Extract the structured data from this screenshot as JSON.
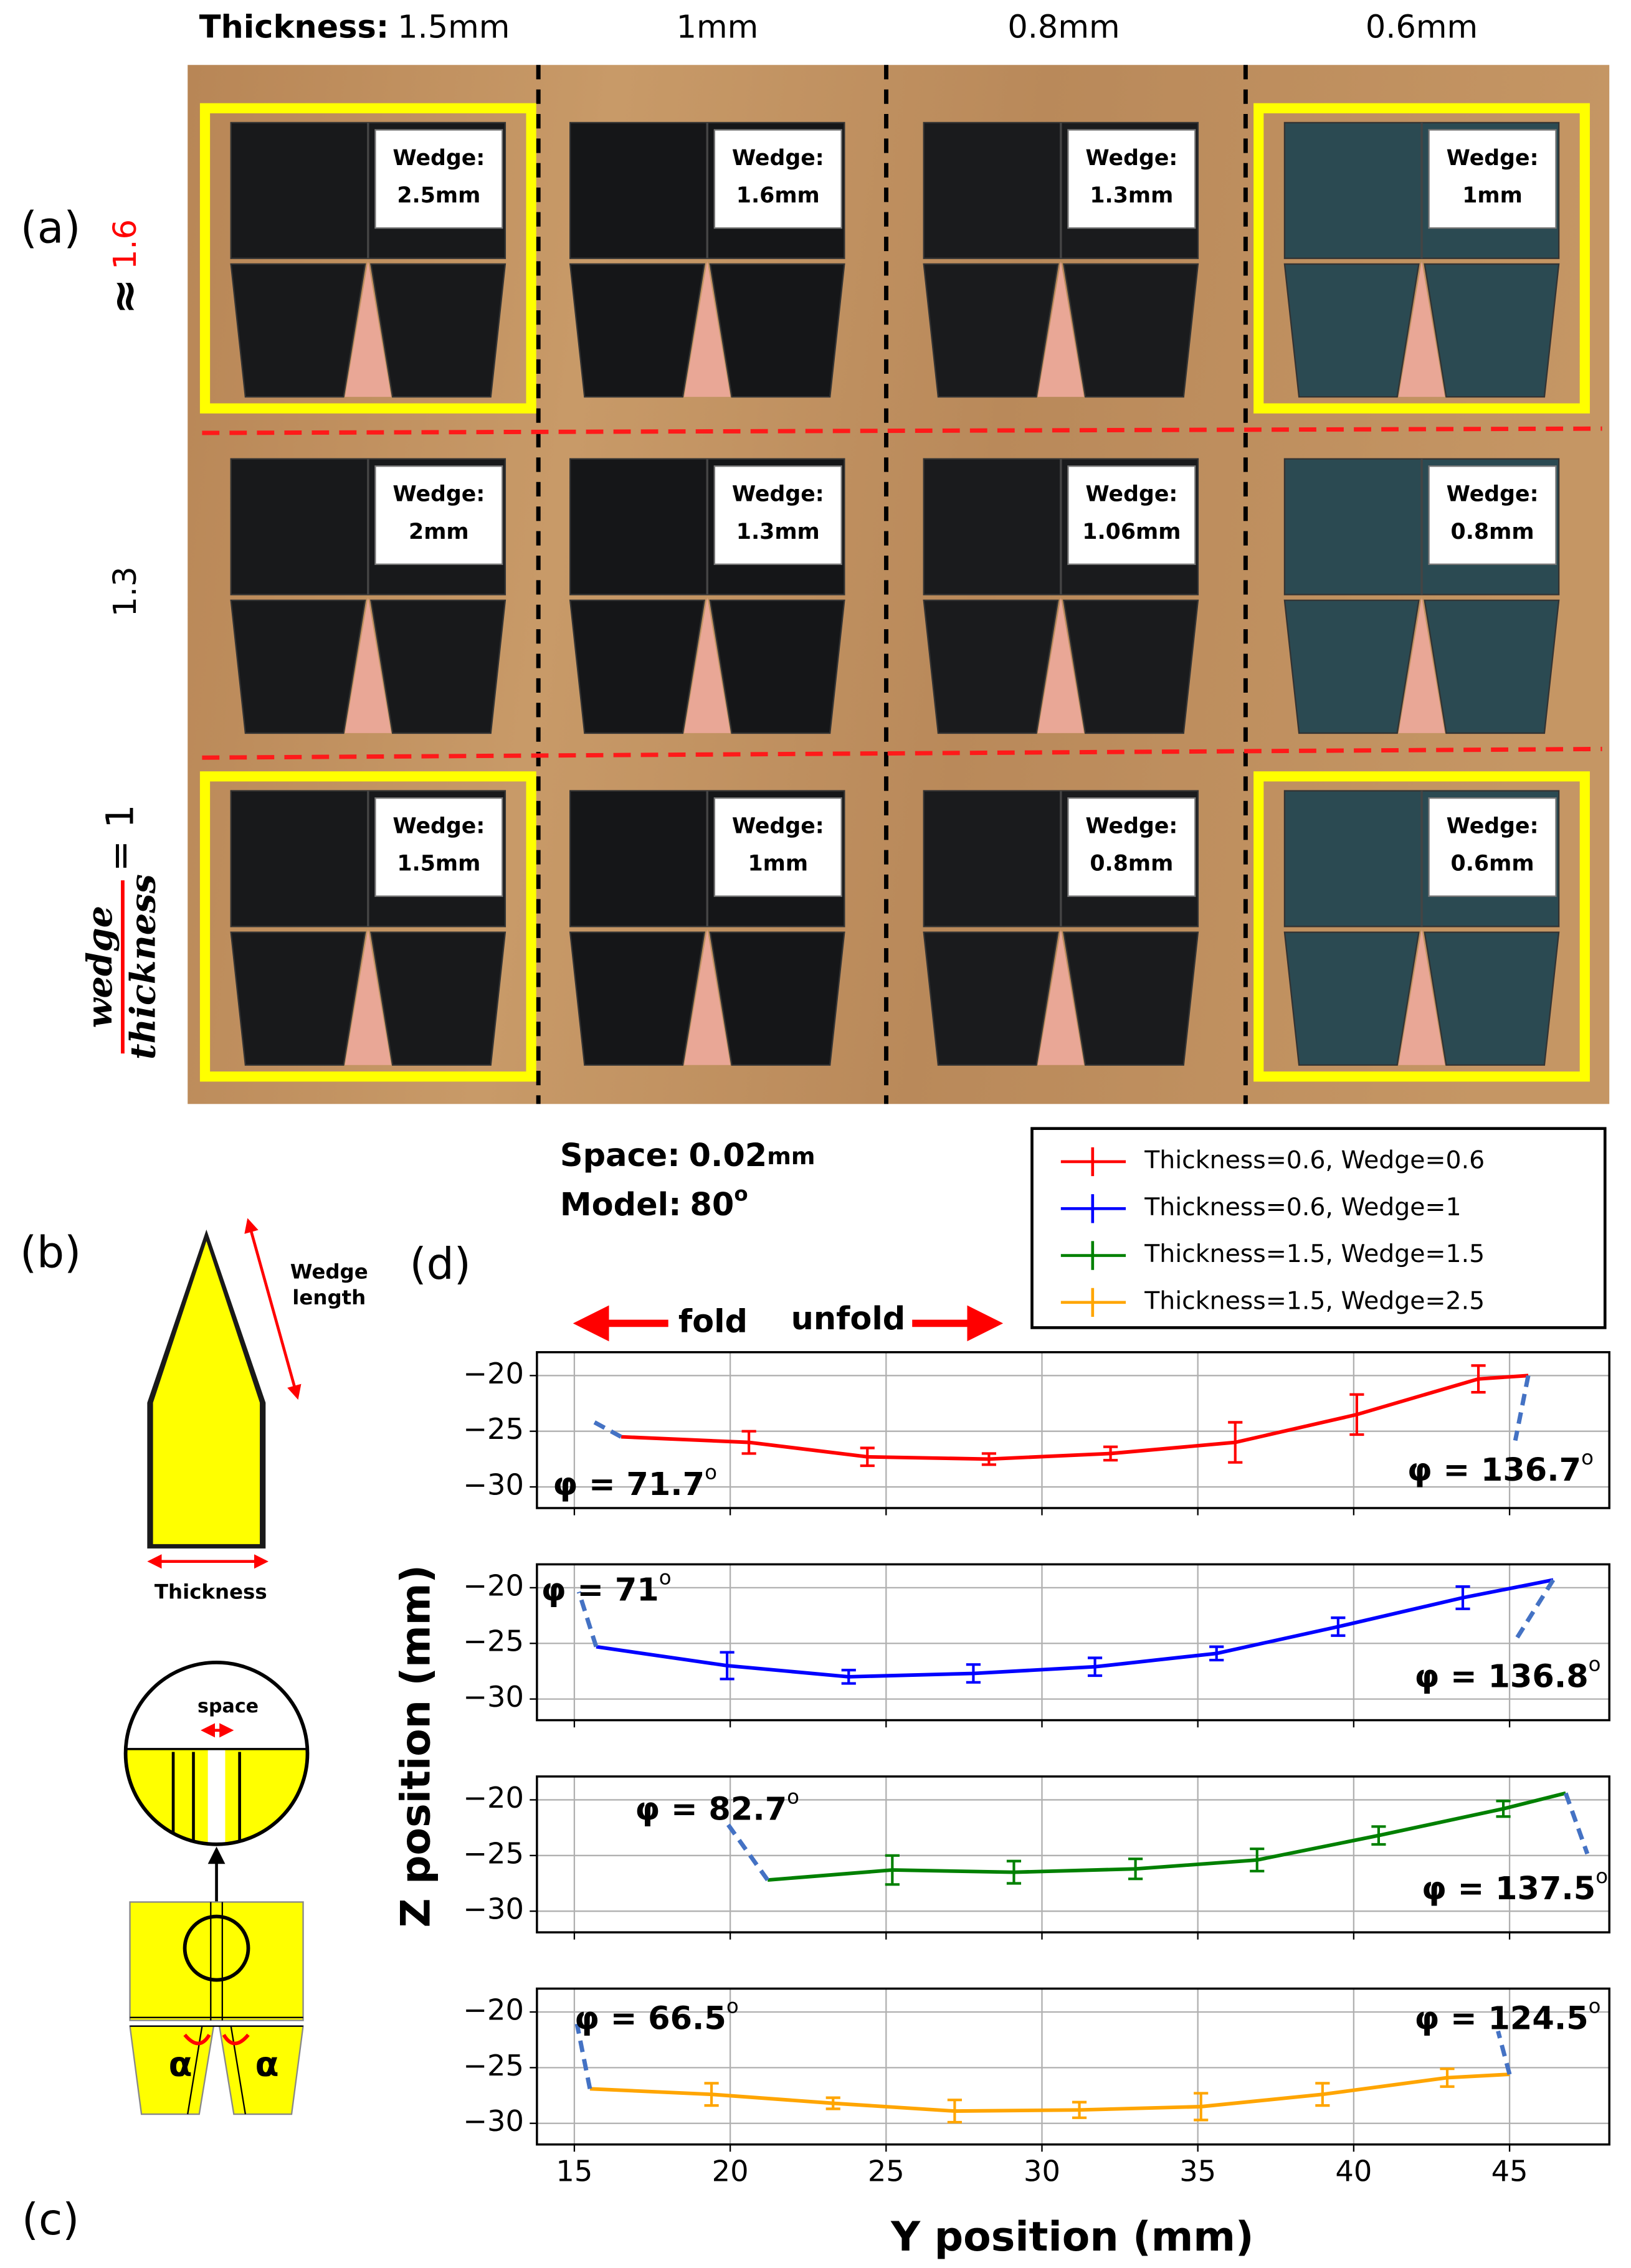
{
  "panel_labels": [
    "(a)",
    "(b)",
    "(c)",
    "(d)"
  ],
  "photo": {
    "header_prefix": "Thickness:",
    "columns": [
      "1.5mm",
      "1mm",
      "0.8mm",
      "0.6mm"
    ],
    "row_labels": [
      {
        "prefix": "≈",
        "text": "1.6"
      },
      {
        "text": "1.3"
      },
      {
        "numerator": "wedge",
        "denominator": "thickness",
        "text": "= 1"
      }
    ],
    "wedge_label": "Wedge:",
    "wedges": [
      [
        "2.5mm",
        "1.6mm",
        "1.3mm",
        "1mm"
      ],
      [
        "2mm",
        "1.3mm",
        "1.06mm",
        "0.8mm"
      ],
      [
        "1.5mm",
        "1mm",
        "0.8mm",
        "0.6mm"
      ]
    ],
    "highlighted": [
      [
        true,
        false,
        false,
        true
      ],
      [
        false,
        false,
        false,
        false
      ],
      [
        true,
        false,
        false,
        true
      ]
    ]
  },
  "notes": {
    "space_label": "Space:",
    "space_value": "0.02",
    "space_unit": "mm",
    "model_label": "Model:",
    "model_value": "80",
    "model_unit": "o"
  },
  "diagram": {
    "wedge_length": [
      "Wedge",
      "length"
    ],
    "thickness": "Thickness",
    "space": "space",
    "angle": "α"
  },
  "fold_labels": [
    "fold",
    "unfold"
  ],
  "axes_labels": {
    "x": "Y position (mm)",
    "y": "Z position (mm)"
  },
  "chart_data": [
    {
      "type": "line",
      "xlim": [
        13.8,
        48.2
      ],
      "ylim": [
        -31.9,
        -17.9
      ],
      "xticks": [
        15,
        20,
        25,
        30,
        35,
        40,
        45
      ],
      "yticks": [
        {
          "value": -20,
          "label": "−20"
        },
        {
          "value": -25,
          "label": "−25"
        },
        {
          "value": -30,
          "label": "−30"
        }
      ],
      "grid": true,
      "series": [
        {
          "name": "Thickness=0.6, Wedge=0.6",
          "color": "#ff0000",
          "x": [
            16.5,
            20.6,
            24.4,
            28.3,
            32.2,
            36.2,
            40.1,
            44.0,
            45.6
          ],
          "values": [
            -25.5,
            -26,
            -27.3,
            -27.5,
            -27,
            -26,
            -23.5,
            -20.3,
            -20
          ],
          "errors": [
            null,
            1,
            0.8,
            0.5,
            0.6,
            1.8,
            1.8,
            1.2,
            null
          ]
        }
      ],
      "annotations": [
        {
          "text": "φ = 71.7",
          "sup": "o"
        },
        {
          "text": "φ = 136.7",
          "sup": "o"
        }
      ]
    },
    {
      "type": "line",
      "xlim": [
        13.8,
        48.2
      ],
      "ylim": [
        -31.9,
        -17.9
      ],
      "xticks": [
        15,
        20,
        25,
        30,
        35,
        40,
        45
      ],
      "yticks": [
        {
          "value": -20,
          "label": "−20"
        },
        {
          "value": -25,
          "label": "−25"
        },
        {
          "value": -30,
          "label": "−30"
        }
      ],
      "grid": true,
      "series": [
        {
          "name": "Thickness=0.6, Wedge=1",
          "color": "#0000ff",
          "x": [
            15.7,
            19.9,
            23.8,
            27.8,
            31.7,
            35.6,
            39.5,
            43.5,
            46.4
          ],
          "values": [
            -25.3,
            -27,
            -28,
            -27.7,
            -27.1,
            -25.9,
            -23.5,
            -20.9,
            -19.3
          ],
          "errors": [
            null,
            1.2,
            0.6,
            0.8,
            0.8,
            0.6,
            0.8,
            1,
            null
          ]
        }
      ],
      "annotations": [
        {
          "text": "φ = 71",
          "sup": "o"
        },
        {
          "text": "φ = 136.8",
          "sup": "o"
        }
      ]
    },
    {
      "type": "line",
      "xlim": [
        13.8,
        48.2
      ],
      "ylim": [
        -31.9,
        -17.9
      ],
      "xticks": [
        15,
        20,
        25,
        30,
        35,
        40,
        45
      ],
      "yticks": [
        {
          "value": -20,
          "label": "−20"
        },
        {
          "value": -25,
          "label": "−25"
        },
        {
          "value": -30,
          "label": "−30"
        }
      ],
      "grid": true,
      "series": [
        {
          "name": "Thickness=1.5, Wedge=1.5",
          "color": "#008000",
          "x": [
            21.2,
            25.2,
            29.1,
            33.0,
            36.9,
            40.8,
            44.8,
            46.8
          ],
          "values": [
            -27.2,
            -26.3,
            -26.5,
            -26.2,
            -25.4,
            -23.2,
            -20.8,
            -19.4
          ],
          "errors": [
            null,
            1.3,
            1,
            0.9,
            1,
            0.8,
            0.7,
            null
          ]
        }
      ],
      "annotations": [
        {
          "text": "φ = 82.7",
          "sup": "o"
        },
        {
          "text": "φ = 137.5",
          "sup": "o"
        }
      ]
    },
    {
      "type": "line",
      "xlim": [
        13.8,
        48.2
      ],
      "ylim": [
        -31.9,
        -17.9
      ],
      "xticks": [
        15,
        20,
        25,
        30,
        35,
        40,
        45
      ],
      "yticks": [
        {
          "value": -20,
          "label": "−20"
        },
        {
          "value": -25,
          "label": "−25"
        },
        {
          "value": -30,
          "label": "−30"
        }
      ],
      "grid": true,
      "series": [
        {
          "name": "Thickness=1.5, Wedge=2.5",
          "color": "#ffa500",
          "x": [
            15.5,
            19.4,
            23.3,
            27.2,
            31.2,
            35.1,
            39.0,
            43.0,
            45.0
          ],
          "values": [
            -26.9,
            -27.4,
            -28.2,
            -28.9,
            -28.8,
            -28.5,
            -27.4,
            -25.9,
            -25.6
          ],
          "errors": [
            null,
            1,
            0.5,
            1,
            0.7,
            1.2,
            1,
            0.8,
            null
          ]
        }
      ],
      "annotations": [
        {
          "text": "φ = 66.5",
          "sup": "o"
        },
        {
          "text": "φ = 124.5",
          "sup": "o"
        }
      ]
    }
  ]
}
